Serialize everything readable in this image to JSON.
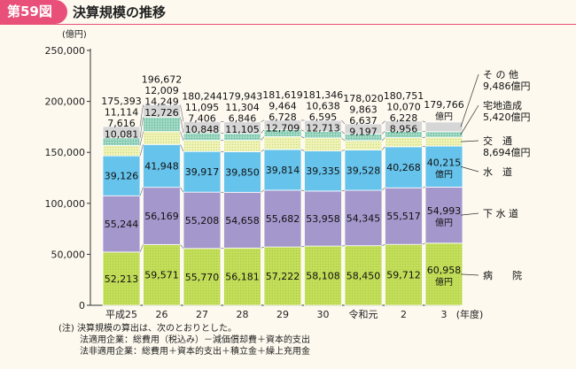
{
  "header": {
    "figure_label": "第59図",
    "title": "決算規模の推移"
  },
  "chart_data": {
    "type": "bar",
    "stacked": true,
    "ylabel": "(億円)",
    "xlabel": "(年度)",
    "ylim": [
      0,
      250000
    ],
    "yticks": [
      0,
      50000,
      100000,
      150000,
      200000,
      250000
    ],
    "ytick_labels": [
      "0",
      "50,000",
      "100,000",
      "150,000",
      "200,000",
      "250,000"
    ],
    "grid": false,
    "categories": [
      "平成25",
      "26",
      "27",
      "28",
      "29",
      "30",
      "令和元",
      "2",
      "3"
    ],
    "totals": [
      175393,
      196672,
      180244,
      179943,
      181619,
      181346,
      178020,
      180751,
      179766
    ],
    "total_labels": [
      "175,393",
      "196,672",
      "180,244",
      "179,943",
      "181,619",
      "181,346",
      "178,020",
      "180,751",
      "179,766"
    ],
    "last_total_unit": "億円",
    "series": [
      {
        "name": "病 院",
        "color": "#c3de5a",
        "pattern": "dots-green",
        "values": [
          52213,
          59571,
          55770,
          56181,
          57222,
          58108,
          58450,
          59712,
          60958
        ],
        "labels": [
          "52,213",
          "59,571",
          "55,770",
          "56,181",
          "57,222",
          "58,108",
          "58,450",
          "59,712",
          "60,958"
        ]
      },
      {
        "name": "下 水 道",
        "color": "#a497cb",
        "pattern": "solid",
        "values": [
          55244,
          56169,
          55208,
          54658,
          55682,
          53958,
          54345,
          55517,
          54993
        ],
        "labels": [
          "55,244",
          "56,169",
          "55,208",
          "54,658",
          "55,682",
          "53,958",
          "54,345",
          "55,517",
          "54,993"
        ]
      },
      {
        "name": "水 道",
        "color": "#66c3ec",
        "pattern": "solid",
        "values": [
          39126,
          41948,
          39917,
          39850,
          39814,
          39335,
          39528,
          40268,
          40215
        ],
        "labels": [
          "39,126",
          "41,948",
          "39,917",
          "39,850",
          "39,814",
          "39,335",
          "39,528",
          "40,268",
          "40,215"
        ]
      },
      {
        "name": "交 通",
        "color": "#eef3b4",
        "pattern": "dots-light",
        "values": [
          10081,
          12726,
          10848,
          11105,
          12709,
          12713,
          9197,
          8956,
          8694
        ],
        "labels": [
          "10,081",
          "12,726",
          "10,848",
          "11,105",
          "12,709",
          "12,713",
          "9,197",
          "8,956",
          "8,694"
        ]
      },
      {
        "name": "宅地造成",
        "color": "#a9dcc8",
        "pattern": "grid",
        "values": [
          7616,
          14249,
          7406,
          6846,
          6728,
          6595,
          6637,
          6228,
          5420
        ],
        "labels": [
          "7,616",
          "14,249",
          "7,406",
          "6,846",
          "6,728",
          "6,595",
          "6,637",
          "6,228",
          "5,420"
        ]
      },
      {
        "name": "その他",
        "color": "#d6d6d6",
        "pattern": "solid",
        "values": [
          11114,
          12009,
          11095,
          11304,
          9464,
          10638,
          9863,
          10070,
          9486
        ],
        "labels": [
          "11,114",
          "12,009",
          "11,095",
          "11,304",
          "9,464",
          "10,638",
          "9,863",
          "10,070",
          "9,486"
        ]
      }
    ],
    "callouts": [
      {
        "series": 5,
        "lines": [
          "そ の 他",
          "9,486億円"
        ]
      },
      {
        "series": 4,
        "lines": [
          "宅地造成",
          "5,420億円"
        ]
      },
      {
        "series": 3,
        "lines": [
          "交　通",
          "8,694億円"
        ]
      },
      {
        "series": 2,
        "lines": [
          "水　道"
        ]
      },
      {
        "series": 1,
        "lines": [
          "下 水 道"
        ]
      },
      {
        "series": 0,
        "lines": [
          "病　　院"
        ]
      }
    ],
    "last_bar_value_units": [
      "億円",
      "億円",
      "億円"
    ]
  },
  "notes": {
    "line1": "(注)  決算規模の算出は、次のとおりとした。",
    "line2": "法適用企業：総費用（税込み）－減価償却費＋資本的支出",
    "line3": "法非適用企業：総費用＋資本的支出＋積立金＋繰上充用金"
  }
}
